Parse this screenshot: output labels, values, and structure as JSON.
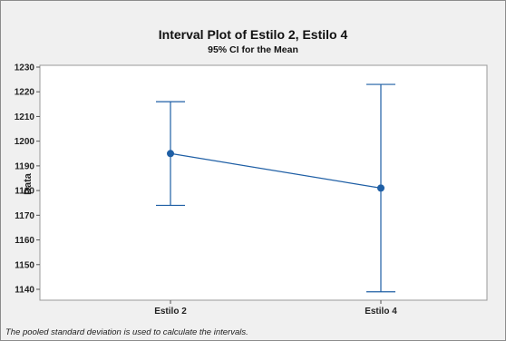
{
  "chart_data": {
    "type": "interval",
    "title": "Interval Plot of Estilo 2, Estilo 4",
    "subtitle": "95% CI for the Mean",
    "ylabel": "Data",
    "xlabel": "",
    "ylim": [
      1135,
      1230
    ],
    "yticks": [
      1140,
      1150,
      1160,
      1170,
      1180,
      1190,
      1200,
      1210,
      1220,
      1230
    ],
    "categories": [
      "Estilo 2",
      "Estilo 4"
    ],
    "means": [
      1195,
      1181
    ],
    "lower": [
      1174,
      1139
    ],
    "upper": [
      1216,
      1223
    ],
    "grid": false,
    "line_color": "#1f5fa5",
    "point_color": "#1f5fa5",
    "footnote": "The pooled standard deviation is used to calculate the intervals."
  }
}
